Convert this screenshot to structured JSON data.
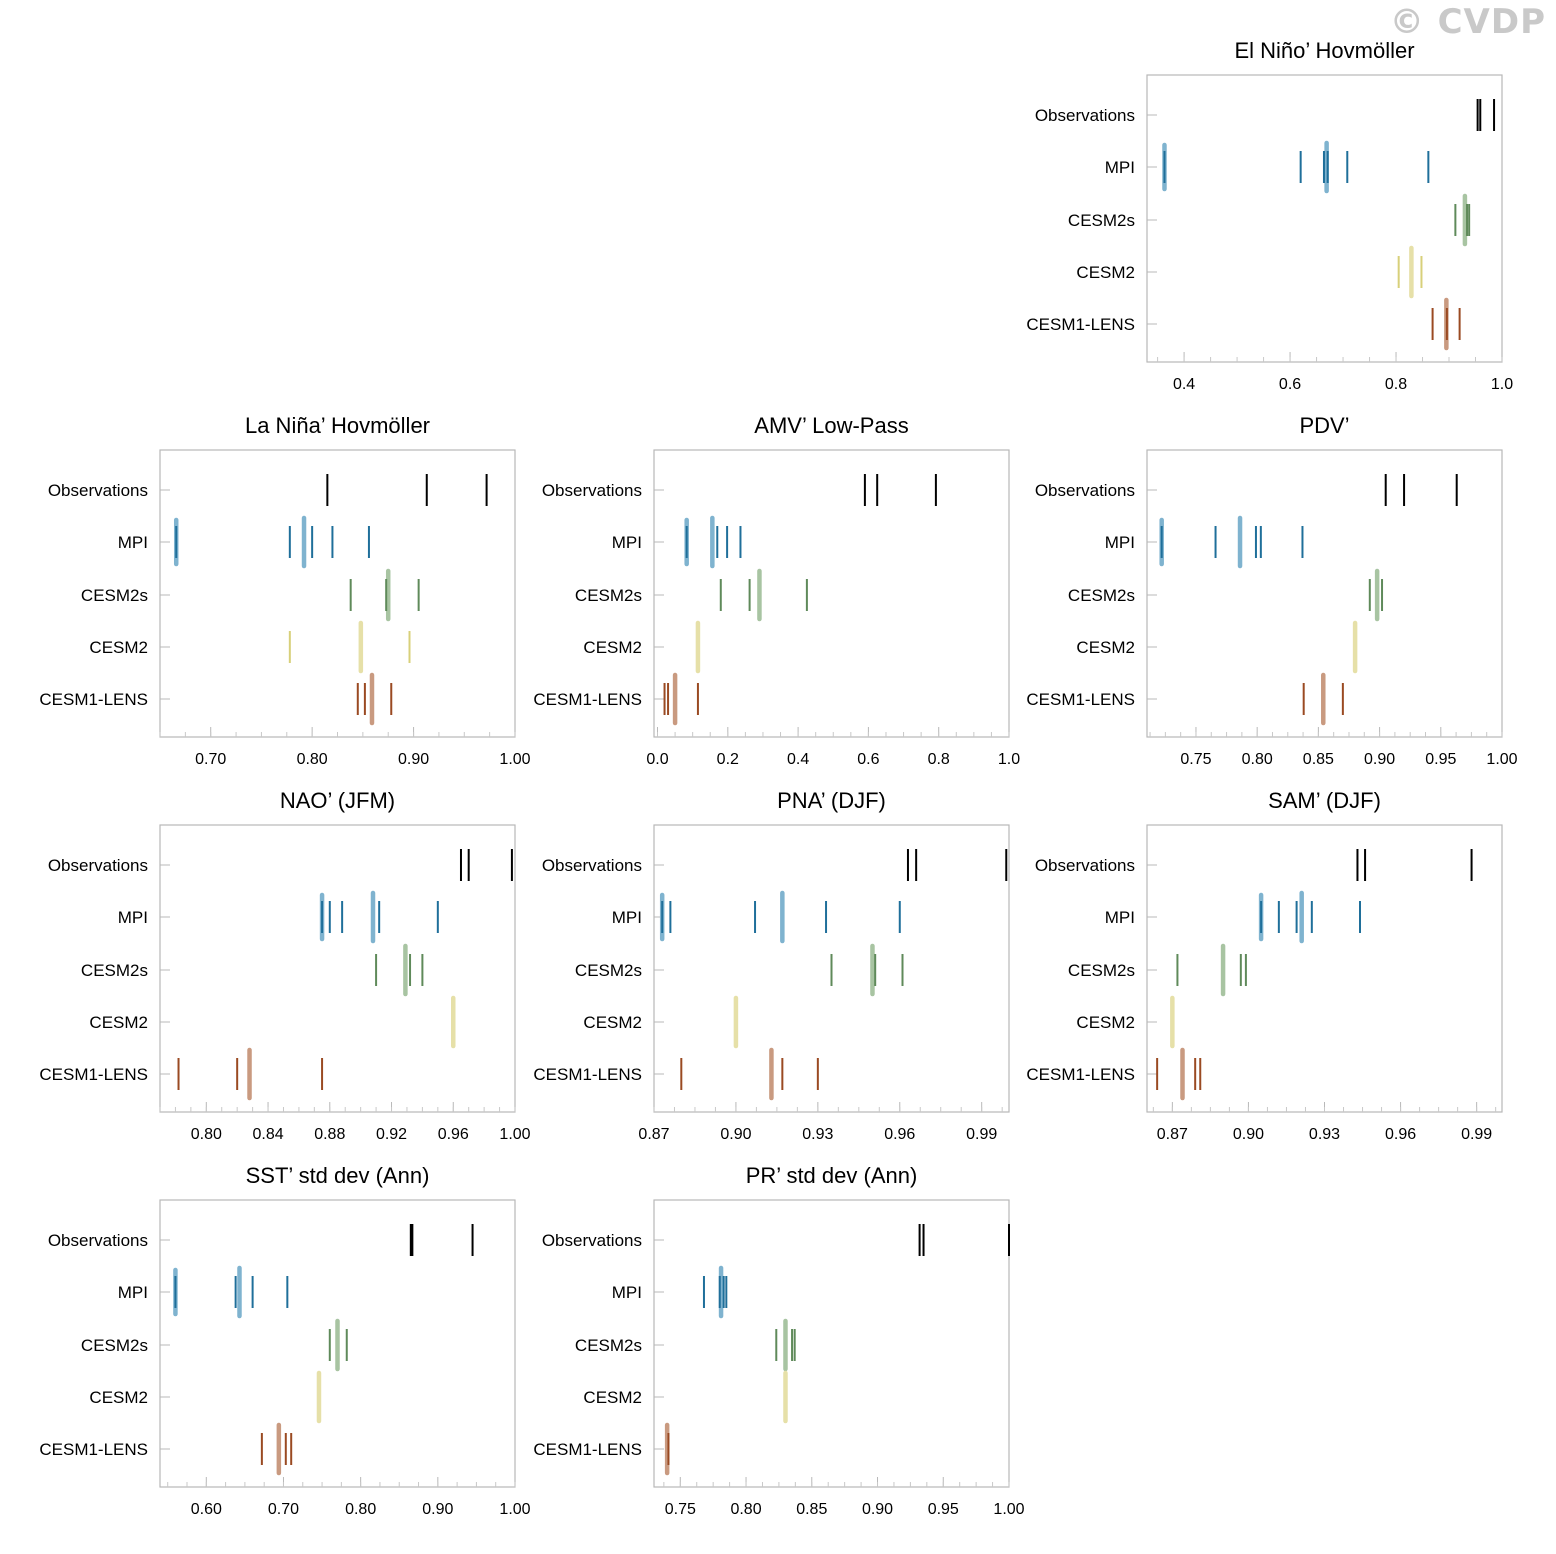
{
  "watermark": "© CVDP",
  "rows": [
    "Observations",
    "MPI",
    "CESM2s",
    "CESM2",
    "CESM1-LENS"
  ],
  "colors": {
    "Observations": "#000000",
    "MPI": "#1f6f9a",
    "CESM2s": "#5f8a5a",
    "CESM2": "#d8d07a",
    "CESM1-LENS": "#9a4a22",
    "MPI_mean": "#7fb3cf",
    "CESM2s_mean": "#a8c4a2",
    "CESM2_mean": "#e6e0a8",
    "CESM1-LENS_mean": "#c99a80"
  },
  "chart_data": [
    {
      "type": "strip",
      "title": "El Niño’ Hovmöller",
      "xlim": [
        0.33,
        1.0
      ],
      "ticks": [
        0.4,
        0.6,
        0.8,
        1.0
      ],
      "tick_labels": [
        "0.4",
        "0.6",
        "0.8",
        "1.0"
      ],
      "series": [
        {
          "name": "Observations",
          "values": [
            0.954,
            0.959,
            0.985
          ]
        },
        {
          "name": "MPI",
          "values": [
            0.363,
            0.62,
            0.664,
            0.671,
            0.708,
            0.861
          ],
          "mean": 0.669,
          "mean_cap": 0.363
        },
        {
          "name": "CESM2s",
          "values": [
            0.912,
            0.934,
            0.938
          ],
          "mean": 0.93
        },
        {
          "name": "CESM2",
          "values": [
            0.805,
            0.848
          ],
          "mean": 0.829
        },
        {
          "name": "CESM1-LENS",
          "values": [
            0.869,
            0.896,
            0.92
          ],
          "mean": 0.895
        }
      ]
    },
    {
      "type": "strip",
      "title": "La Niña’ Hovmöller",
      "xlim": [
        0.65,
        1.0
      ],
      "ticks": [
        0.7,
        0.8,
        0.9,
        1.0
      ],
      "tick_labels": [
        "0.70",
        "0.80",
        "0.90",
        "1.00"
      ],
      "series": [
        {
          "name": "Observations",
          "values": [
            0.815,
            0.913,
            0.972
          ]
        },
        {
          "name": "MPI",
          "values": [
            0.666,
            0.778,
            0.8,
            0.82,
            0.856
          ],
          "mean": 0.792,
          "mean_cap": 0.666
        },
        {
          "name": "CESM2s",
          "values": [
            0.838,
            0.873,
            0.905
          ],
          "mean": 0.875
        },
        {
          "name": "CESM2",
          "values": [
            0.778,
            0.896
          ],
          "mean": 0.848
        },
        {
          "name": "CESM1-LENS",
          "values": [
            0.845,
            0.852,
            0.878
          ],
          "mean": 0.859
        }
      ]
    },
    {
      "type": "strip",
      "title": "AMV’ Low-Pass",
      "xlim": [
        -0.01,
        1.0
      ],
      "ticks": [
        0.0,
        0.2,
        0.4,
        0.6,
        0.8,
        1.0
      ],
      "tick_labels": [
        "0.0",
        "0.2",
        "0.4",
        "0.6",
        "0.8",
        "1.0"
      ],
      "series": [
        {
          "name": "Observations",
          "values": [
            0.59,
            0.625,
            0.792
          ]
        },
        {
          "name": "MPI",
          "values": [
            0.083,
            0.17,
            0.198,
            0.236
          ],
          "mean": 0.156,
          "mean_cap": 0.083
        },
        {
          "name": "CESM2s",
          "values": [
            0.18,
            0.262,
            0.425
          ],
          "mean": 0.29
        },
        {
          "name": "CESM2",
          "values": [],
          "mean": 0.115
        },
        {
          "name": "CESM1-LENS",
          "values": [
            0.02,
            0.03,
            0.115
          ],
          "mean": 0.05
        }
      ]
    },
    {
      "type": "strip",
      "title": "PDV’",
      "xlim": [
        0.71,
        1.0
      ],
      "ticks": [
        0.75,
        0.8,
        0.85,
        0.9,
        0.95,
        1.0
      ],
      "tick_labels": [
        "0.75",
        "0.80",
        "0.85",
        "0.90",
        "0.95",
        "1.00"
      ],
      "series": [
        {
          "name": "Observations",
          "values": [
            0.905,
            0.92,
            0.963
          ]
        },
        {
          "name": "MPI",
          "values": [
            0.722,
            0.766,
            0.799,
            0.803,
            0.837
          ],
          "mean": 0.786,
          "mean_cap": 0.722
        },
        {
          "name": "CESM2s",
          "values": [
            0.892,
            0.902
          ],
          "mean": 0.898
        },
        {
          "name": "CESM2",
          "values": [],
          "mean": 0.88
        },
        {
          "name": "CESM1-LENS",
          "values": [
            0.838,
            0.87
          ],
          "mean": 0.854
        }
      ]
    },
    {
      "type": "strip",
      "title": "NAO’ (JFM)",
      "xlim": [
        0.77,
        1.0
      ],
      "ticks": [
        0.8,
        0.84,
        0.88,
        0.92,
        0.96,
        1.0
      ],
      "tick_labels": [
        "0.80",
        "0.84",
        "0.88",
        "0.92",
        "0.96",
        "1.00"
      ],
      "series": [
        {
          "name": "Observations",
          "values": [
            0.965,
            0.97,
            0.998
          ]
        },
        {
          "name": "MPI",
          "values": [
            0.875,
            0.88,
            0.888,
            0.912,
            0.95
          ],
          "mean": 0.908,
          "mean_cap": 0.875
        },
        {
          "name": "CESM2s",
          "values": [
            0.91,
            0.932,
            0.94
          ],
          "mean": 0.929
        },
        {
          "name": "CESM2",
          "values": [],
          "mean": 0.96
        },
        {
          "name": "CESM1-LENS",
          "values": [
            0.782,
            0.82,
            0.875
          ],
          "mean": 0.828
        }
      ]
    },
    {
      "type": "strip",
      "title": "PNA’ (DJF)",
      "xlim": [
        0.87,
        1.0
      ],
      "ticks": [
        0.87,
        0.9,
        0.93,
        0.96,
        0.99
      ],
      "tick_labels": [
        "0.87",
        "0.90",
        "0.93",
        "0.96",
        "0.99"
      ],
      "series": [
        {
          "name": "Observations",
          "values": [
            0.963,
            0.966,
            0.999
          ]
        },
        {
          "name": "MPI",
          "values": [
            0.873,
            0.876,
            0.907,
            0.933,
            0.96
          ],
          "mean": 0.917,
          "mean_cap": 0.873
        },
        {
          "name": "CESM2s",
          "values": [
            0.935,
            0.951,
            0.961
          ],
          "mean": 0.95
        },
        {
          "name": "CESM2",
          "values": [],
          "mean": 0.9
        },
        {
          "name": "CESM1-LENS",
          "values": [
            0.88,
            0.917,
            0.93
          ],
          "mean": 0.913
        }
      ]
    },
    {
      "type": "strip",
      "title": "SAM’ (DJF)",
      "xlim": [
        0.86,
        1.0
      ],
      "ticks": [
        0.87,
        0.9,
        0.93,
        0.96,
        0.99
      ],
      "tick_labels": [
        "0.87",
        "0.90",
        "0.93",
        "0.96",
        "0.99"
      ],
      "series": [
        {
          "name": "Observations",
          "values": [
            0.943,
            0.946,
            0.988
          ]
        },
        {
          "name": "MPI",
          "values": [
            0.905,
            0.912,
            0.919,
            0.925,
            0.944
          ],
          "mean": 0.921,
          "mean_cap": 0.905
        },
        {
          "name": "CESM2s",
          "values": [
            0.872,
            0.897,
            0.899
          ],
          "mean": 0.89
        },
        {
          "name": "CESM2",
          "values": [],
          "mean": 0.87
        },
        {
          "name": "CESM1-LENS",
          "values": [
            0.864,
            0.879,
            0.881
          ],
          "mean": 0.874
        }
      ]
    },
    {
      "type": "strip",
      "title": "SST’ std dev (Ann)",
      "xlim": [
        0.54,
        1.0
      ],
      "ticks": [
        0.6,
        0.7,
        0.8,
        0.9,
        1.0
      ],
      "tick_labels": [
        "0.60",
        "0.70",
        "0.80",
        "0.90",
        "1.00"
      ],
      "series": [
        {
          "name": "Observations",
          "values": [
            0.865,
            0.867,
            0.945
          ]
        },
        {
          "name": "MPI",
          "values": [
            0.56,
            0.638,
            0.66,
            0.705
          ],
          "mean": 0.643,
          "mean_cap": 0.56
        },
        {
          "name": "CESM2s",
          "values": [
            0.76,
            0.782
          ],
          "mean": 0.77
        },
        {
          "name": "CESM2",
          "values": [],
          "mean": 0.746
        },
        {
          "name": "CESM1-LENS",
          "values": [
            0.672,
            0.703,
            0.71
          ],
          "mean": 0.694
        }
      ]
    },
    {
      "type": "strip",
      "title": "PR’ std dev (Ann)",
      "xlim": [
        0.73,
        1.0
      ],
      "ticks": [
        0.75,
        0.8,
        0.85,
        0.9,
        0.95,
        1.0
      ],
      "tick_labels": [
        "0.75",
        "0.80",
        "0.85",
        "0.90",
        "0.95",
        "1.00"
      ],
      "series": [
        {
          "name": "Observations",
          "values": [
            0.932,
            0.935,
            1.0
          ]
        },
        {
          "name": "MPI",
          "values": [
            0.768,
            0.78,
            0.783,
            0.785
          ],
          "mean": 0.781
        },
        {
          "name": "CESM2s",
          "values": [
            0.823,
            0.835,
            0.837
          ],
          "mean": 0.83
        },
        {
          "name": "CESM2",
          "values": [],
          "mean": 0.83
        },
        {
          "name": "CESM1-LENS",
          "values": [
            0.741
          ],
          "mean": 0.74
        }
      ]
    }
  ]
}
